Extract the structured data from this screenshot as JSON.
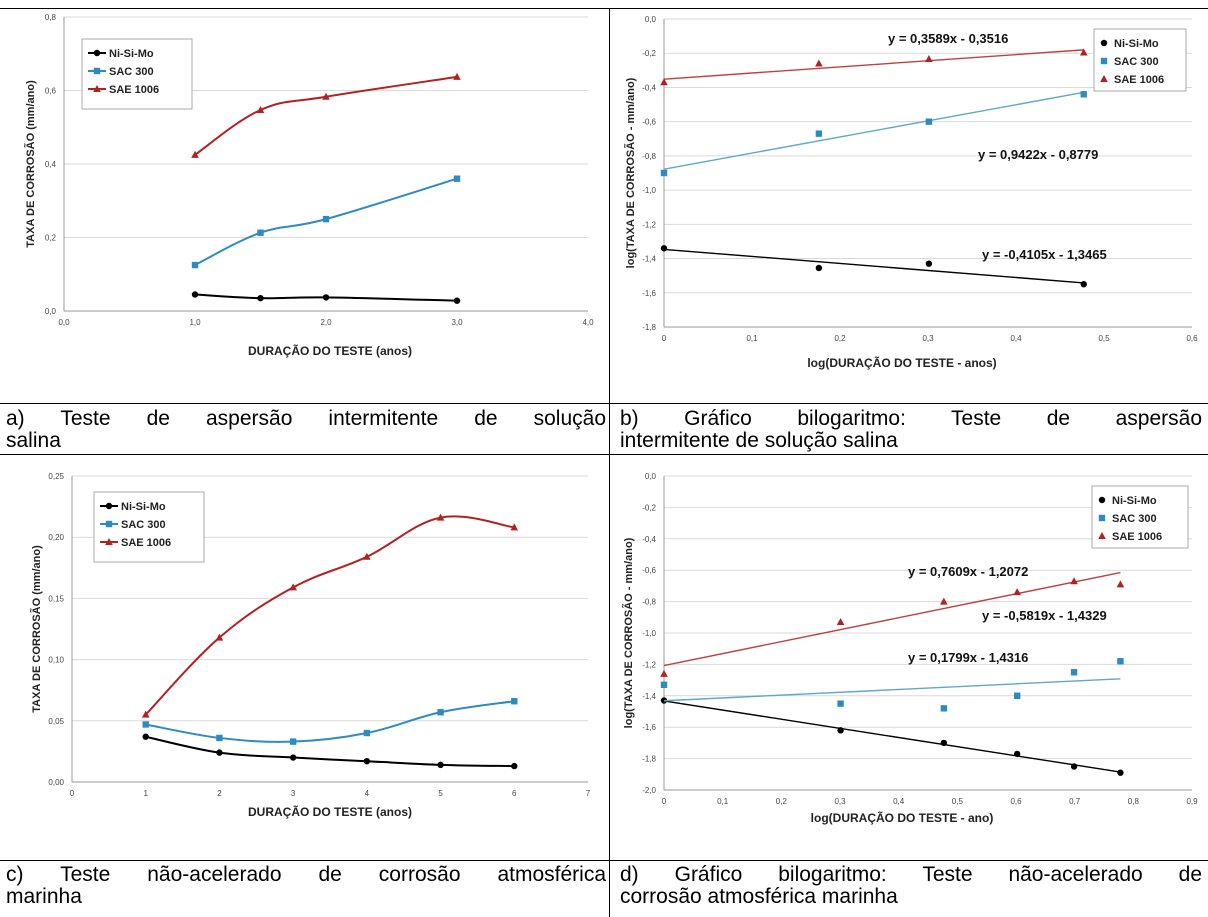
{
  "colors": {
    "nisimo": "#000000",
    "sac300": "#2e8bc0",
    "sae1006": "#b22222",
    "line_sac": "#5fa8c8",
    "line_sae": "#c04040"
  },
  "captions": {
    "a": [
      "a) Teste de aspersão intermitente de solução",
      "salina"
    ],
    "b": [
      "b) Gráfico bilogaritmo: Teste de aspersão",
      "intermitente de solução salina"
    ],
    "c": [
      "c) Teste não-acelerado de corrosão atmosférica",
      "marinha"
    ],
    "d": [
      "d) Gráfico bilogaritmo: Teste não-acelerado de",
      "corrosão atmosférica marinha"
    ]
  },
  "chart_data": [
    {
      "id": "a",
      "type": "line",
      "xlabel": "DURAÇÃO DO TESTE (anos)",
      "ylabel": "TAXA DE CORROSÃO (mm/ano)",
      "xlim": [
        0,
        4
      ],
      "ylim": [
        0,
        0.8
      ],
      "xticks": [
        "0,0",
        "1,0",
        "2,0",
        "3,0",
        "4,0"
      ],
      "yticks": [
        "0,0",
        "0,2",
        "0,4",
        "0,6",
        "0,8"
      ],
      "legend_position": "top-left",
      "x": [
        1.0,
        1.5,
        2.0,
        3.0
      ],
      "series": [
        {
          "name": "Ni-Si-Mo",
          "values": [
            0.045,
            0.035,
            0.037,
            0.028
          ]
        },
        {
          "name": "SAC 300",
          "values": [
            0.125,
            0.213,
            0.25,
            0.36
          ]
        },
        {
          "name": "SAE 1006",
          "values": [
            0.425,
            0.547,
            0.583,
            0.637
          ]
        }
      ]
    },
    {
      "id": "b",
      "type": "scatter",
      "xlabel": "log(DURAÇÃO DO TESTE - anos)",
      "ylabel": "log(TAXA DE CORROSÃO - mm/ano)",
      "xlim": [
        0,
        0.6
      ],
      "ylim": [
        -1.8,
        0.0
      ],
      "xticks": [
        "0",
        "0,1",
        "0,2",
        "0,3",
        "0,4",
        "0,5",
        "0,6"
      ],
      "yticks": [
        "0,0",
        "-0,2",
        "-0,4",
        "-0,6",
        "-0,8",
        "-1,0",
        "-1,2",
        "-1,4",
        "-1,6",
        "-1,8"
      ],
      "legend_position": "top-right",
      "x": [
        0,
        0.176,
        0.301,
        0.477
      ],
      "series": [
        {
          "name": "Ni-Si-Mo",
          "values": [
            -1.34,
            -1.455,
            -1.43,
            -1.55
          ],
          "trend": {
            "slope": -0.4105,
            "intercept": -1.3465,
            "equation": "y = -0,4105x - 1,3465"
          }
        },
        {
          "name": "SAC 300",
          "values": [
            -0.9,
            -0.67,
            -0.6,
            -0.44
          ],
          "trend": {
            "slope": 0.9422,
            "intercept": -0.8779,
            "equation": "y = 0,9422x - 0,8779"
          }
        },
        {
          "name": "SAE 1006",
          "values": [
            -0.37,
            -0.26,
            -0.234,
            -0.196
          ],
          "trend": {
            "slope": 0.3589,
            "intercept": -0.3516,
            "equation": "y = 0,3589x - 0,3516"
          }
        }
      ]
    },
    {
      "id": "c",
      "type": "line",
      "xlabel": "DURAÇÃO DO TESTE (anos)",
      "ylabel": "TAXA DE CORROSÃO (mm/ano)",
      "xlim": [
        0,
        7
      ],
      "ylim": [
        0,
        0.25
      ],
      "xticks": [
        "0",
        "1",
        "2",
        "3",
        "4",
        "5",
        "6",
        "7"
      ],
      "yticks": [
        "0,00",
        "0,05",
        "0,10",
        "0,15",
        "0,20",
        "0,25"
      ],
      "legend_position": "top-left",
      "x": [
        1,
        2,
        3,
        4,
        5,
        6
      ],
      "series": [
        {
          "name": "Ni-Si-Mo",
          "values": [
            0.037,
            0.024,
            0.02,
            0.017,
            0.014,
            0.013
          ]
        },
        {
          "name": "SAC 300",
          "values": [
            0.047,
            0.036,
            0.033,
            0.04,
            0.057,
            0.066
          ]
        },
        {
          "name": "SAE 1006",
          "values": [
            0.055,
            0.118,
            0.159,
            0.184,
            0.216,
            0.208
          ]
        }
      ]
    },
    {
      "id": "d",
      "type": "scatter",
      "xlabel": "log(DURAÇÃO DO TESTE - ano)",
      "ylabel": "log(TAXA DE CORROSÃO - mm/ano)",
      "xlim": [
        0,
        0.9
      ],
      "ylim": [
        -2.0,
        0.0
      ],
      "xticks": [
        "0",
        "0,1",
        "0,2",
        "0,3",
        "0,4",
        "0,5",
        "0,6",
        "0,7",
        "0,8",
        "0,9"
      ],
      "yticks": [
        "0,0",
        "-0,2",
        "-0,4",
        "-0,6",
        "-0,8",
        "-1,0",
        "-1,2",
        "-1,4",
        "-1,6",
        "-1,8",
        "-2,0"
      ],
      "legend_position": "top-right",
      "x": [
        0,
        0.301,
        0.477,
        0.602,
        0.699,
        0.778
      ],
      "series": [
        {
          "name": "Ni-Si-Mo",
          "values": [
            -1.43,
            -1.62,
            -1.7,
            -1.77,
            -1.85,
            -1.89
          ],
          "trend": {
            "slope": -0.5819,
            "intercept": -1.4329,
            "equation": "y = -0,5819x - 1,4329"
          }
        },
        {
          "name": "SAC 300",
          "values": [
            -1.33,
            -1.45,
            -1.48,
            -1.4,
            -1.25,
            -1.18
          ],
          "trend": {
            "slope": 0.1799,
            "intercept": -1.4316,
            "equation": "y = 0,1799x - 1,4316"
          }
        },
        {
          "name": "SAE 1006",
          "values": [
            -1.26,
            -0.93,
            -0.8,
            -0.74,
            -0.67,
            -0.69
          ],
          "trend": {
            "slope": 0.7609,
            "intercept": -1.2072,
            "equation": "y = 0,7609x - 1,2072"
          }
        }
      ]
    }
  ]
}
